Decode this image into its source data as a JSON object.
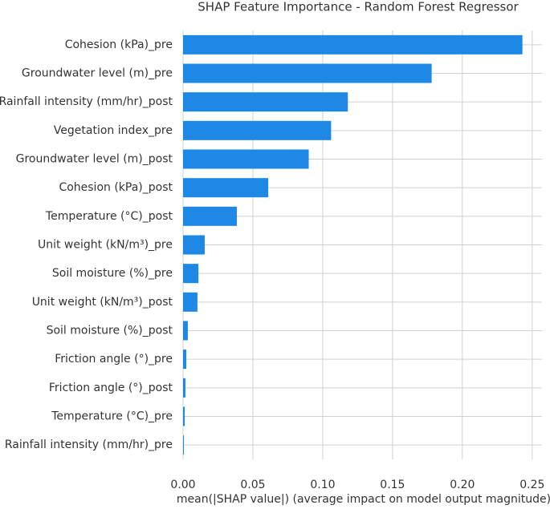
{
  "chart_data": {
    "type": "barh",
    "title": "SHAP Feature Importance - Random Forest Regressor",
    "x_label": "mean(|SHAP value|) (average impact on model output magnitude)",
    "categories": [
      "Cohesion (kPa)_pre",
      "Groundwater level (m)_pre",
      "Rainfall intensity (mm/hr)_post",
      "Vegetation index_pre",
      "Groundwater level (m)_post",
      "Cohesion (kPa)_post",
      "Temperature (°C)_post",
      "Unit weight (kN/m³)_pre",
      "Soil moisture (%)_pre",
      "Unit weight (kN/m³)_post",
      "Soil moisture (%)_post",
      "Friction angle (°)_pre",
      "Friction angle (°)_post",
      "Temperature (°C)_pre",
      "Rainfall intensity (mm/hr)_pre"
    ],
    "values": [
      0.243,
      0.178,
      0.118,
      0.106,
      0.09,
      0.061,
      0.0385,
      0.0155,
      0.011,
      0.0103,
      0.0034,
      0.0023,
      0.0017,
      0.0012,
      0.0006
    ],
    "color": "#1e88e5",
    "xlim": [
      0,
      0.257
    ],
    "xticks": [
      {
        "value": 0,
        "label": "0.00"
      },
      0.05,
      {
        "value": 0.1,
        "label": "0.10"
      },
      0.15,
      {
        "value": 0.2,
        "label": "0.20"
      },
      0.25
    ],
    "grid": true
  }
}
